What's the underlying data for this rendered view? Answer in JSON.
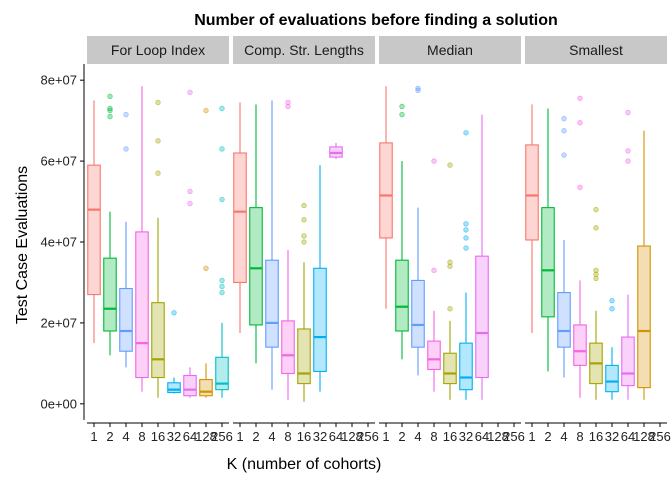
{
  "chart_data": {
    "type": "boxplot",
    "title": "Number of evaluations before finding a solution",
    "xlabel": "K (number of cohorts)",
    "ylabel": "Test Case Evaluations",
    "ylim": [
      0,
      80000000
    ],
    "y_ticks": [
      0,
      20000000,
      40000000,
      60000000,
      80000000
    ],
    "y_tick_labels": [
      "0e+00",
      "2e+07",
      "4e+07",
      "6e+07",
      "8e+07"
    ],
    "categories": [
      "1",
      "2",
      "4",
      "8",
      "16",
      "32",
      "64",
      "128",
      "256"
    ],
    "colors": [
      "#F8766D",
      "#00BA38",
      "#619CFF",
      "#F564E3",
      "#A3A500",
      "#00B0F6",
      "#E76BF3",
      "#D39200",
      "#00BFC4"
    ],
    "grid": false,
    "legend": "none",
    "panels": [
      {
        "name": "For Loop Index",
        "boxes": [
          {
            "k": "1",
            "min": 15000000,
            "q1": 27000000,
            "median": 48000000,
            "q3": 59000000,
            "max": 75000000,
            "outliers": []
          },
          {
            "k": "2",
            "min": 12000000,
            "q1": 18000000,
            "median": 23500000,
            "q3": 36000000,
            "max": 47500000,
            "outliers": [
              71000000,
              72500000,
              73000000,
              76000000
            ]
          },
          {
            "k": "4",
            "min": 9000000,
            "q1": 13000000,
            "median": 18000000,
            "q3": 28500000,
            "max": 45000000,
            "outliers": [
              63000000,
              71500000
            ]
          },
          {
            "k": "8",
            "min": 3000000,
            "q1": 6500000,
            "median": 15000000,
            "q3": 42500000,
            "max": 78500000,
            "outliers": []
          },
          {
            "k": "16",
            "min": 1500000,
            "q1": 6500000,
            "median": 11000000,
            "q3": 25000000,
            "max": 46000000,
            "outliers": [
              57000000,
              65000000,
              74500000
            ]
          },
          {
            "k": "32",
            "min": 2500000,
            "q1": 2800000,
            "median": 3500000,
            "q3": 5200000,
            "max": 6500000,
            "outliers": [
              22500000
            ]
          },
          {
            "k": "64",
            "min": 1500000,
            "q1": 2000000,
            "median": 3500000,
            "q3": 7000000,
            "max": 9000000,
            "outliers": [
              49500000,
              52500000,
              77000000
            ]
          },
          {
            "k": "128",
            "min": 1500000,
            "q1": 2000000,
            "median": 3000000,
            "q3": 6000000,
            "max": 10000000,
            "outliers": [
              33500000,
              72500000
            ]
          },
          {
            "k": "256",
            "min": 1500000,
            "q1": 3500000,
            "median": 5000000,
            "q3": 11500000,
            "max": 20000000,
            "outliers": [
              27500000,
              29000000,
              30500000,
              50500000,
              63000000,
              73000000
            ]
          }
        ]
      },
      {
        "name": "Comp. Str. Lengths",
        "boxes": [
          {
            "k": "1",
            "min": 17500000,
            "q1": 30000000,
            "median": 47500000,
            "q3": 62000000,
            "max": 74500000,
            "outliers": []
          },
          {
            "k": "2",
            "min": 10000000,
            "q1": 19500000,
            "median": 33500000,
            "q3": 48500000,
            "max": 74000000,
            "outliers": []
          },
          {
            "k": "4",
            "min": 3500000,
            "q1": 14000000,
            "median": 20000000,
            "q3": 35500000,
            "max": 75000000,
            "outliers": []
          },
          {
            "k": "8",
            "min": 1000000,
            "q1": 7500000,
            "median": 12000000,
            "q3": 20500000,
            "max": 38000000,
            "outliers": [
              73500000,
              74500000
            ]
          },
          {
            "k": "16",
            "min": 500000,
            "q1": 5000000,
            "median": 7500000,
            "q3": 18500000,
            "max": 35000000,
            "outliers": [
              40000000,
              41500000,
              45500000,
              49000000
            ]
          },
          {
            "k": "32",
            "min": 3000000,
            "q1": 8000000,
            "median": 16500000,
            "q3": 33500000,
            "max": 59000000,
            "outliers": []
          },
          {
            "k": "64",
            "min": 60500000,
            "q1": 61000000,
            "median": 62000000,
            "q3": 63500000,
            "max": 64500000,
            "outliers": []
          }
        ]
      },
      {
        "name": "Median",
        "boxes": [
          {
            "k": "1",
            "min": 23500000,
            "q1": 41000000,
            "median": 51500000,
            "q3": 64500000,
            "max": 78500000,
            "outliers": []
          },
          {
            "k": "2",
            "min": 11000000,
            "q1": 18000000,
            "median": 24000000,
            "q3": 35500000,
            "max": 60000000,
            "outliers": [
              71500000,
              73500000
            ]
          },
          {
            "k": "4",
            "min": 7000000,
            "q1": 14000000,
            "median": 19500000,
            "q3": 30500000,
            "max": 48500000,
            "outliers": [
              77500000,
              78000000
            ]
          },
          {
            "k": "8",
            "min": 3000000,
            "q1": 8500000,
            "median": 11000000,
            "q3": 15500000,
            "max": 23000000,
            "outliers": [
              33000000,
              60000000
            ]
          },
          {
            "k": "16",
            "min": 1000000,
            "q1": 5000000,
            "median": 7500000,
            "q3": 12500000,
            "max": 20500000,
            "outliers": [
              23500000,
              34000000,
              35000000,
              59000000
            ]
          },
          {
            "k": "32",
            "min": 1000000,
            "q1": 3500000,
            "median": 6500000,
            "q3": 15000000,
            "max": 27500000,
            "outliers": [
              38500000,
              41000000,
              43000000,
              44500000,
              67000000
            ]
          },
          {
            "k": "64",
            "min": 1000000,
            "q1": 6500000,
            "median": 17500000,
            "q3": 36500000,
            "max": 71500000,
            "outliers": []
          }
        ]
      },
      {
        "name": "Smallest",
        "boxes": [
          {
            "k": "1",
            "min": 17500000,
            "q1": 40500000,
            "median": 51500000,
            "q3": 64000000,
            "max": 74000000,
            "outliers": []
          },
          {
            "k": "2",
            "min": 8000000,
            "q1": 21500000,
            "median": 33000000,
            "q3": 48500000,
            "max": 73000000,
            "outliers": []
          },
          {
            "k": "4",
            "min": 6500000,
            "q1": 14000000,
            "median": 18000000,
            "q3": 27500000,
            "max": 40500000,
            "outliers": [
              61500000,
              67500000,
              70500000
            ]
          },
          {
            "k": "8",
            "min": 1500000,
            "q1": 9500000,
            "median": 13000000,
            "q3": 19500000,
            "max": 30500000,
            "outliers": [
              53500000,
              69500000,
              75500000
            ]
          },
          {
            "k": "16",
            "min": 1000000,
            "q1": 5000000,
            "median": 10000000,
            "q3": 15000000,
            "max": 23000000,
            "outliers": [
              31000000,
              32000000,
              33000000,
              43500000,
              48000000
            ]
          },
          {
            "k": "32",
            "min": 1000000,
            "q1": 3000000,
            "median": 5500000,
            "q3": 9500000,
            "max": 14000000,
            "outliers": [
              23500000,
              25500000
            ]
          },
          {
            "k": "64",
            "min": 1000000,
            "q1": 4500000,
            "median": 7500000,
            "q3": 16500000,
            "max": 27000000,
            "outliers": [
              60000000,
              62500000,
              72000000
            ]
          },
          {
            "k": "128",
            "min": 1000000,
            "q1": 4000000,
            "median": 18000000,
            "q3": 39000000,
            "max": 67500000,
            "outliers": []
          }
        ]
      }
    ]
  }
}
